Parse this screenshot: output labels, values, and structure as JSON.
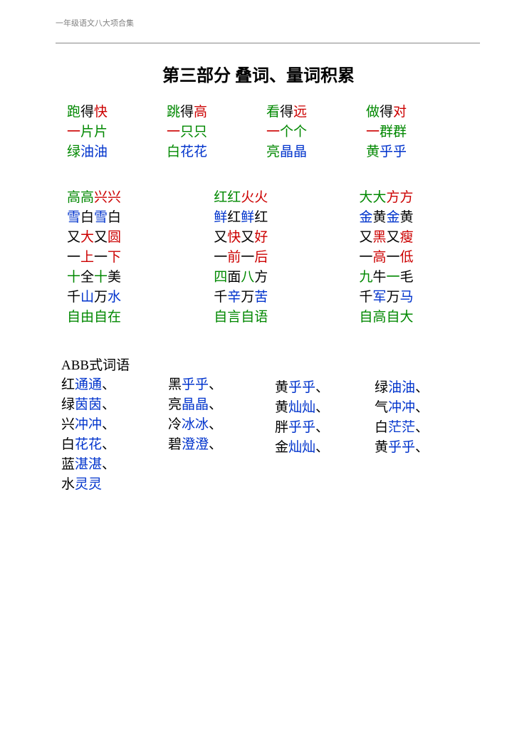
{
  "header": "一年级语文八大项合集",
  "title": "第三部分  叠词、量词积累",
  "colors": {
    "green": "#008800",
    "red": "#cc0000",
    "blue": "#0033cc",
    "black": "#000000"
  },
  "section1": {
    "rows": [
      [
        [
          {
            "t": "跑",
            "c": "g"
          },
          {
            "t": "得",
            "c": "k"
          },
          {
            "t": "快",
            "c": "r"
          }
        ],
        [
          {
            "t": "跳",
            "c": "g"
          },
          {
            "t": "得",
            "c": "k"
          },
          {
            "t": "高",
            "c": "r"
          }
        ],
        [
          {
            "t": "看",
            "c": "g"
          },
          {
            "t": "得",
            "c": "k"
          },
          {
            "t": "远",
            "c": "r"
          }
        ],
        [
          {
            "t": "做",
            "c": "g"
          },
          {
            "t": "得",
            "c": "k"
          },
          {
            "t": "对",
            "c": "r"
          }
        ]
      ],
      [
        [
          {
            "t": "一",
            "c": "r"
          },
          {
            "t": "片片",
            "c": "g"
          }
        ],
        [
          {
            "t": "一",
            "c": "r"
          },
          {
            "t": "只只",
            "c": "g"
          }
        ],
        [
          {
            "t": "一",
            "c": "r"
          },
          {
            "t": "个个",
            "c": "g"
          }
        ],
        [
          {
            "t": "一",
            "c": "r"
          },
          {
            "t": "群群",
            "c": "g"
          }
        ]
      ],
      [
        [
          {
            "t": "绿",
            "c": "g"
          },
          {
            "t": "油油",
            "c": "b"
          }
        ],
        [
          {
            "t": "白",
            "c": "g"
          },
          {
            "t": "花花",
            "c": "b"
          }
        ],
        [
          {
            "t": "亮",
            "c": "g"
          },
          {
            "t": "晶晶",
            "c": "b"
          }
        ],
        [
          {
            "t": "黄",
            "c": "g"
          },
          {
            "t": "乎乎",
            "c": "b"
          }
        ]
      ]
    ]
  },
  "section2": {
    "rows": [
      [
        [
          {
            "t": "高高",
            "c": "g"
          },
          {
            "t": "兴兴",
            "c": "r"
          }
        ],
        [
          {
            "t": "红红",
            "c": "g"
          },
          {
            "t": "火火",
            "c": "r"
          }
        ],
        [
          {
            "t": "大大",
            "c": "g"
          },
          {
            "t": "方方",
            "c": "r"
          }
        ]
      ],
      [
        [
          {
            "t": "雪",
            "c": "b"
          },
          {
            "t": "白",
            "c": "k"
          },
          {
            "t": "雪",
            "c": "b"
          },
          {
            "t": "白",
            "c": "k"
          }
        ],
        [
          {
            "t": "鲜",
            "c": "b"
          },
          {
            "t": "红",
            "c": "k"
          },
          {
            "t": "鲜",
            "c": "b"
          },
          {
            "t": "红",
            "c": "k"
          }
        ],
        [
          {
            "t": "金",
            "c": "b"
          },
          {
            "t": "黄",
            "c": "k"
          },
          {
            "t": "金",
            "c": "b"
          },
          {
            "t": "黄",
            "c": "k"
          }
        ]
      ],
      [
        [
          {
            "t": "又",
            "c": "k"
          },
          {
            "t": "大",
            "c": "r"
          },
          {
            "t": "又",
            "c": "k"
          },
          {
            "t": "圆",
            "c": "r"
          }
        ],
        [
          {
            "t": "又",
            "c": "k"
          },
          {
            "t": "快",
            "c": "r"
          },
          {
            "t": "又",
            "c": "k"
          },
          {
            "t": "好",
            "c": "r"
          }
        ],
        [
          {
            "t": "又",
            "c": "k"
          },
          {
            "t": "黑",
            "c": "r"
          },
          {
            "t": "又",
            "c": "k"
          },
          {
            "t": "瘦",
            "c": "r"
          }
        ]
      ],
      [
        [
          {
            "t": "一",
            "c": "k"
          },
          {
            "t": "上",
            "c": "r"
          },
          {
            "t": "一",
            "c": "k"
          },
          {
            "t": "下",
            "c": "r"
          }
        ],
        [
          {
            "t": "一",
            "c": "k"
          },
          {
            "t": "前",
            "c": "r"
          },
          {
            "t": "一",
            "c": "k"
          },
          {
            "t": "后",
            "c": "r"
          }
        ],
        [
          {
            "t": "一",
            "c": "k"
          },
          {
            "t": "高",
            "c": "r"
          },
          {
            "t": "一",
            "c": "k"
          },
          {
            "t": "低",
            "c": "r"
          }
        ]
      ],
      [
        [
          {
            "t": "十",
            "c": "g"
          },
          {
            "t": "全",
            "c": "k"
          },
          {
            "t": "十",
            "c": "g"
          },
          {
            "t": "美",
            "c": "k"
          }
        ],
        [
          {
            "t": "四",
            "c": "g"
          },
          {
            "t": "面",
            "c": "k"
          },
          {
            "t": "八",
            "c": "g"
          },
          {
            "t": "方",
            "c": "k"
          }
        ],
        [
          {
            "t": "九",
            "c": "g"
          },
          {
            "t": "牛",
            "c": "k"
          },
          {
            "t": "一",
            "c": "g"
          },
          {
            "t": "毛",
            "c": "k"
          }
        ]
      ],
      [
        [
          {
            "t": "千",
            "c": "k"
          },
          {
            "t": "山",
            "c": "b"
          },
          {
            "t": "万",
            "c": "k"
          },
          {
            "t": "水",
            "c": "b"
          }
        ],
        [
          {
            "t": "千",
            "c": "k"
          },
          {
            "t": "辛",
            "c": "b"
          },
          {
            "t": "万",
            "c": "k"
          },
          {
            "t": "苦",
            "c": "b"
          }
        ],
        [
          {
            "t": "千",
            "c": "k"
          },
          {
            "t": "军",
            "c": "b"
          },
          {
            "t": "万",
            "c": "k"
          },
          {
            "t": "马",
            "c": "b"
          }
        ]
      ],
      [
        [
          {
            "t": "自",
            "c": "g"
          },
          {
            "t": "由",
            "c": "g"
          },
          {
            "t": "自",
            "c": "g"
          },
          {
            "t": "在",
            "c": "g"
          }
        ],
        [
          {
            "t": "自",
            "c": "g"
          },
          {
            "t": "言",
            "c": "g"
          },
          {
            "t": "自",
            "c": "g"
          },
          {
            "t": "语",
            "c": "g"
          }
        ],
        [
          {
            "t": "自",
            "c": "g"
          },
          {
            "t": "高",
            "c": "g"
          },
          {
            "t": "自",
            "c": "g"
          },
          {
            "t": "大",
            "c": "g"
          }
        ]
      ]
    ]
  },
  "section3": {
    "header": "ABB式词语",
    "columns": [
      [
        [
          {
            "t": "红",
            "c": "k"
          },
          {
            "t": "通通",
            "c": "b"
          },
          {
            "t": "、",
            "c": "k"
          }
        ],
        [
          {
            "t": "绿",
            "c": "k"
          },
          {
            "t": "茵茵",
            "c": "b"
          },
          {
            "t": "、",
            "c": "k"
          }
        ],
        [
          {
            "t": "兴",
            "c": "k"
          },
          {
            "t": "冲冲",
            "c": "b"
          },
          {
            "t": "、",
            "c": "k"
          }
        ],
        [
          {
            "t": "白",
            "c": "k"
          },
          {
            "t": "花花",
            "c": "b"
          },
          {
            "t": "、",
            "c": "k"
          }
        ],
        [
          {
            "t": "蓝",
            "c": "k"
          },
          {
            "t": "湛湛",
            "c": "b"
          },
          {
            "t": "、",
            "c": "k"
          }
        ],
        [
          {
            "t": "水",
            "c": "k"
          },
          {
            "t": "灵灵",
            "c": "b"
          }
        ]
      ],
      [
        [
          {
            "t": "黑",
            "c": "k"
          },
          {
            "t": "乎乎",
            "c": "b"
          },
          {
            "t": "、",
            "c": "k"
          }
        ],
        [
          {
            "t": "亮",
            "c": "k"
          },
          {
            "t": "晶晶",
            "c": "b"
          },
          {
            "t": "、",
            "c": "k"
          }
        ],
        [
          {
            "t": "冷",
            "c": "k"
          },
          {
            "t": "冰冰",
            "c": "b"
          },
          {
            "t": "、",
            "c": "k"
          }
        ],
        [
          {
            "t": "碧",
            "c": "k"
          },
          {
            "t": "澄澄",
            "c": "b"
          },
          {
            "t": "、",
            "c": "k"
          }
        ]
      ],
      [
        [
          {
            "t": "黄",
            "c": "k"
          },
          {
            "t": "乎乎",
            "c": "b"
          },
          {
            "t": "、",
            "c": "k"
          }
        ],
        [
          {
            "t": "黄",
            "c": "k"
          },
          {
            "t": "灿灿",
            "c": "b"
          },
          {
            "t": "、",
            "c": "k"
          }
        ],
        [
          {
            "t": "胖",
            "c": "k"
          },
          {
            "t": "乎乎",
            "c": "b"
          },
          {
            "t": "、",
            "c": "k"
          }
        ],
        [
          {
            "t": "金",
            "c": "k"
          },
          {
            "t": "灿灿",
            "c": "b"
          },
          {
            "t": "、",
            "c": "k"
          }
        ]
      ],
      [
        [
          {
            "t": "绿",
            "c": "k"
          },
          {
            "t": "油油",
            "c": "b"
          },
          {
            "t": "、",
            "c": "k"
          }
        ],
        [
          {
            "t": "气",
            "c": "k"
          },
          {
            "t": "冲冲",
            "c": "b"
          },
          {
            "t": "、",
            "c": "k"
          }
        ],
        [
          {
            "t": "白",
            "c": "k"
          },
          {
            "t": "茫茫",
            "c": "b"
          },
          {
            "t": "、",
            "c": "k"
          }
        ],
        [
          {
            "t": "黄",
            "c": "k"
          },
          {
            "t": "乎乎",
            "c": "b"
          },
          {
            "t": "、",
            "c": "k"
          }
        ]
      ]
    ]
  }
}
